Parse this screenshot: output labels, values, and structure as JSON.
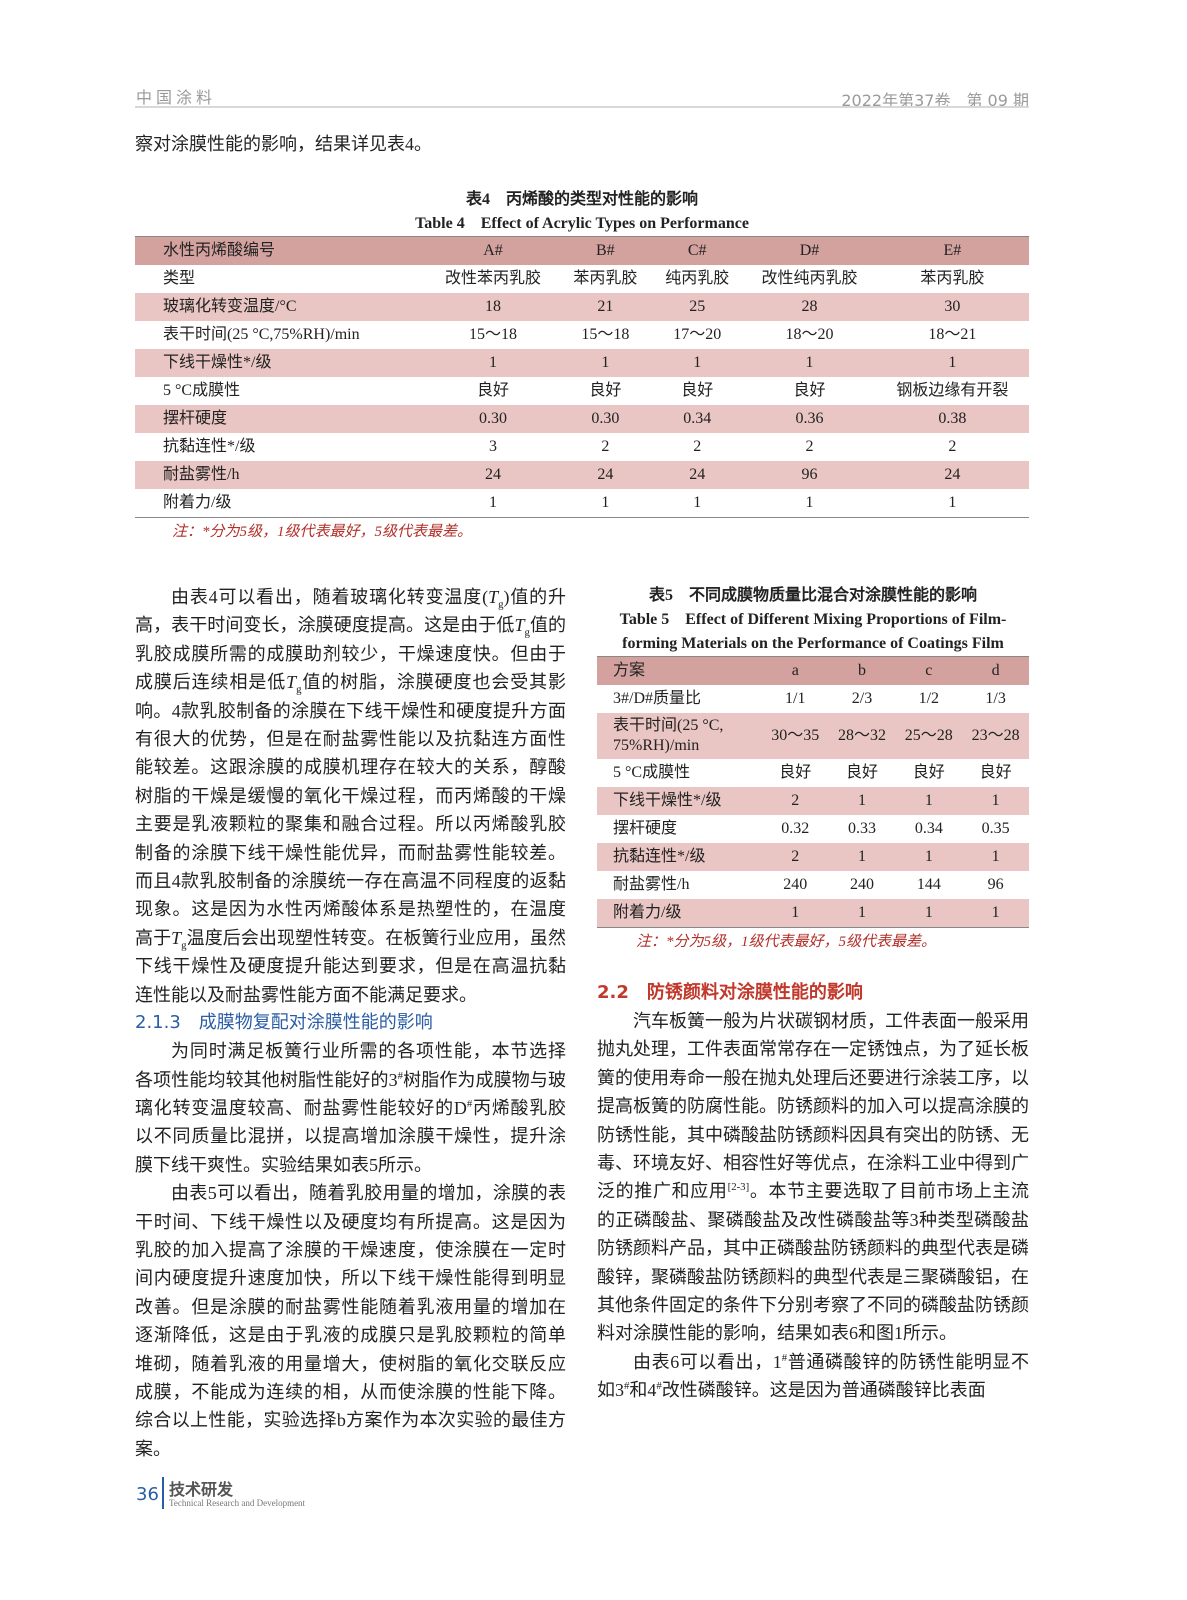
{
  "header": {
    "journal": "中国涂料",
    "issue": "2022年第37卷　第 09 期"
  },
  "intro_line": "察对涂膜性能的影响，结果详见表4。",
  "table4": {
    "caption_cn": "表4　丙烯酸的类型对性能的影响",
    "caption_en": "Table 4　Effect of Acrylic Types on Performance",
    "rows": [
      [
        "水性丙烯酸编号",
        "A#",
        "B#",
        "C#",
        "D#",
        "E#"
      ],
      [
        "类型",
        "改性苯丙乳胶",
        "苯丙乳胶",
        "纯丙乳胶",
        "改性纯丙乳胶",
        "苯丙乳胶"
      ],
      [
        "玻璃化转变温度/°C",
        "18",
        "21",
        "25",
        "28",
        "30"
      ],
      [
        "表干时间(25 °C,75%RH)/min",
        "15～18",
        "15～18",
        "17～20",
        "18～20",
        "18～21"
      ],
      [
        "下线干燥性*/级",
        "1",
        "1",
        "1",
        "1",
        "1"
      ],
      [
        "5 °C成膜性",
        "良好",
        "良好",
        "良好",
        "良好",
        "钢板边缘有开裂"
      ],
      [
        "摆杆硬度",
        "0.30",
        "0.30",
        "0.34",
        "0.36",
        "0.38"
      ],
      [
        "抗黏连性*/级",
        "3",
        "2",
        "2",
        "2",
        "2"
      ],
      [
        "耐盐雾性/h",
        "24",
        "24",
        "24",
        "96",
        "24"
      ],
      [
        "附着力/级",
        "1",
        "1",
        "1",
        "1",
        "1"
      ]
    ],
    "note": "注：*分为5级，1级代表最好，5级代表最差。"
  },
  "table5": {
    "caption_cn": "表5　不同成膜物质量比混合对涂膜性能的影响",
    "caption_en_1": "Table 5　Effect of Different Mixing Proportions of Film-",
    "caption_en_2": "forming Materials on the Performance of Coatings Film",
    "rows": [
      [
        "方案",
        "a",
        "b",
        "c",
        "d"
      ],
      [
        "3#/D#质量比",
        "1/1",
        "2/3",
        "1/2",
        "1/3"
      ],
      [
        "表干时间(25 °C,\n75%RH)/min",
        "30～35",
        "28～32",
        "25～28",
        "23～28"
      ],
      [
        "5 °C成膜性",
        "良好",
        "良好",
        "良好",
        "良好"
      ],
      [
        "下线干燥性*/级",
        "2",
        "1",
        "1",
        "1"
      ],
      [
        "摆杆硬度",
        "0.32",
        "0.33",
        "0.34",
        "0.35"
      ],
      [
        "抗黏连性*/级",
        "2",
        "1",
        "1",
        "1"
      ],
      [
        "耐盐雾性/h",
        "240",
        "240",
        "144",
        "96"
      ],
      [
        "附着力/级",
        "1",
        "1",
        "1",
        "1"
      ]
    ],
    "note": "注：*分为5级，1级代表最好，5级代表最差。"
  },
  "left": {
    "p1": [
      "由表4可以看出，随着玻璃化转变温度(",
      {
        "i": "T",
        "sub": "g"
      },
      ")值的升高，表干时间变长，涂膜硬度提高。这是由于低",
      {
        "i": "T",
        "sub": "g"
      },
      "值的乳胶成膜所需的成膜助剂较少，干燥速度快。但由于成膜后连续相是低",
      {
        "i": "T",
        "sub": "g"
      },
      "值的树脂，涂膜硬度也会受其影响。4款乳胶制备的涂膜在下线干燥性和硬度提升方面有很大的优势，但是在耐盐雾性能以及抗黏连方面性能较差。这跟涂膜的成膜机理存在较大的关系，醇酸树脂的干燥是缓慢的氧化干燥过程，而丙烯酸的干燥主要是乳液颗粒的聚集和融合过程。所以丙烯酸乳胶制备的涂膜下线干燥性能优异，而耐盐雾性能较差。而且4款乳胶制备的涂膜统一存在高温不同程度的返黏现象。这是因为水性丙烯酸体系是热塑性的，在温度高于",
      {
        "i": "T",
        "sub": "g"
      },
      "温度后会出现塑性转变。在板簧行业应用，虽然下线干燥性及硬度提升能达到要求，但是在高温抗黏连性能以及耐盐雾性能方面不能满足要求。"
    ],
    "h3": "2.1.3　成膜物复配对涂膜性能的影响",
    "p2": [
      "为同时满足板簧行业所需的各项性能，本节选择各项性能均较其他树脂性能好的3",
      {
        "sup": "#"
      },
      "树脂作为成膜物与玻璃化转变温度较高、耐盐雾性能较好的D",
      {
        "sup": "#"
      },
      "丙烯酸乳胶以不同质量比混拼，以提高增加涂膜干燥性，提升涂膜下线干爽性。实验结果如表5所示。"
    ],
    "p3": [
      "由表5可以看出，随着乳胶用量的增加，涂膜的表干时间、下线干燥性以及硬度均有所提高。这是因为乳胶的加入提高了涂膜的干燥速度，使涂膜在一定时间内硬度提升速度加快，所以下线干燥性能得到明显改善。但是涂膜的耐盐雾性能随着乳液用量的增加在逐渐降低，这是由于乳液的成膜只是乳胶颗粒的简单堆砌，随着乳液的用量增大，使树脂的氧化交联反应成膜，不能成为连续的相，从而使涂膜的性能下降。综合以上性能，实验选择b方案作为本次实验的最佳方案。"
    ]
  },
  "right": {
    "h2": "2.2　防锈颜料对涂膜性能的影响",
    "p1": [
      "汽车板簧一般为片状碳钢材质，工件表面一般采用抛丸处理，工件表面常常存在一定锈蚀点，为了延长板簧的使用寿命一般在抛丸处理后还要进行涂装工序，以提高板簧的防腐性能。防锈颜料的加入可以提高涂膜的防锈性能，其中磷酸盐防锈颜料因具有突出的防锈、无毒、环境友好、相容性好等优点，在涂料工业中得到广泛的推广和应用",
      {
        "sup": "[2-3]"
      },
      "。本节主要选取了目前市场上主流的正磷酸盐、聚磷酸盐及改性磷酸盐等3种类型磷酸盐防锈颜料产品，其中正磷酸盐防锈颜料的典型代表是磷酸锌，聚磷酸盐防锈颜料的典型代表是三聚磷酸铝，在其他条件固定的条件下分别考察了不同的磷酸盐防锈颜料对涂膜性能的影响，结果如表6和图1所示。"
    ],
    "p2": [
      "由表6可以看出，1",
      {
        "sup": "#"
      },
      "普通磷酸锌的防锈性能明显不如3",
      {
        "sup": "#"
      },
      "和4",
      {
        "sup": "#"
      },
      "改性磷酸锌。这是因为普通磷酸锌比表面"
    ]
  },
  "footer": {
    "page": "36",
    "section_cn": "技术研发",
    "section_en": "Technical Research and Development"
  },
  "colors": {
    "table_header": "#d3a29f",
    "table_band": "#e9c6c3",
    "note": "#b2302a",
    "heading_blue": "#2a5da6",
    "heading_red": "#c0392b"
  }
}
